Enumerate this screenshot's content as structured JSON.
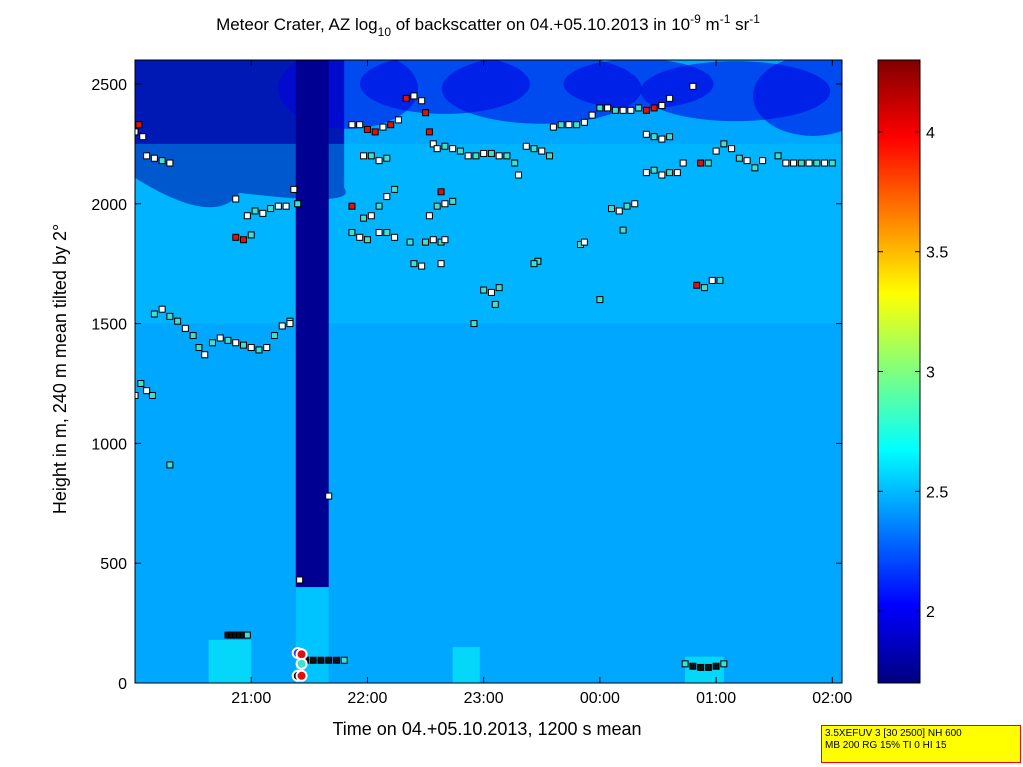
{
  "chart_data": {
    "type": "heatmap",
    "title": {
      "prefix": "Meteor Crater, AZ log",
      "log_base": "10",
      "middle": " of backscatter on 04.+05.10.2013 in 10",
      "exp1": "-9",
      "m_text": " m",
      "exp2": "-1",
      "sr_text": " sr",
      "exp3": "-1"
    },
    "xlabel": "Time on 04.+05.10.2013, 1200 s mean",
    "ylabel": "Height in m, 240 m mean tilted by 2°",
    "x_ticks": [
      "21:00",
      "22:00",
      "23:00",
      "00:00",
      "01:00",
      "02:00"
    ],
    "x_range": [
      "20:00",
      "02:05"
    ],
    "y_ticks": [
      0,
      500,
      1000,
      1500,
      2000,
      2500
    ],
    "ylim": [
      0,
      2600
    ],
    "colorbar": {
      "ticks": [
        "2",
        "2.5",
        "3",
        "3.5",
        "4"
      ],
      "ticks_num": [
        2,
        2.5,
        3,
        3.5,
        4
      ],
      "range": [
        1.7,
        4.3
      ]
    },
    "background_level": 2.45,
    "dark_column": {
      "from": "21:23",
      "to": "21:40",
      "top": 2600,
      "bottom": 400,
      "level": 1.75
    },
    "upper_dark_region": {
      "from": "20:00",
      "to": "21:48",
      "bottom": 2150,
      "level": 1.8
    },
    "layer_points": [
      [
        "20:00",
        1200,
        "w"
      ],
      [
        "20:03",
        1250,
        "c"
      ],
      [
        "20:06",
        1220,
        "w"
      ],
      [
        "20:09",
        1200,
        "c"
      ],
      [
        "20:10",
        1540,
        "c"
      ],
      [
        "20:14",
        1560,
        "w"
      ],
      [
        "20:18",
        1530,
        "c"
      ],
      [
        "20:22",
        1510,
        "c"
      ],
      [
        "20:26",
        1480,
        "w"
      ],
      [
        "20:30",
        1450,
        "c"
      ],
      [
        "20:33",
        1400,
        "c"
      ],
      [
        "20:36",
        1370,
        "w"
      ],
      [
        "20:40",
        1420,
        "c"
      ],
      [
        "20:44",
        1440,
        "w"
      ],
      [
        "20:48",
        1430,
        "c"
      ],
      [
        "20:52",
        1420,
        "w"
      ],
      [
        "20:56",
        1410,
        "c"
      ],
      [
        "21:00",
        1400,
        "w"
      ],
      [
        "21:04",
        1390,
        "c"
      ],
      [
        "21:08",
        1400,
        "w"
      ],
      [
        "21:12",
        1450,
        "c"
      ],
      [
        "21:16",
        1490,
        "w"
      ],
      [
        "21:20",
        1510,
        "c"
      ],
      [
        "20:00",
        2300,
        "w"
      ],
      [
        "20:02",
        2330,
        "r"
      ],
      [
        "20:04",
        2280,
        "w"
      ],
      [
        "20:06",
        2200,
        "w"
      ],
      [
        "20:10",
        2190,
        "w"
      ],
      [
        "20:14",
        2180,
        "c"
      ],
      [
        "20:18",
        2170,
        "w"
      ],
      [
        "20:52",
        2020,
        "w"
      ],
      [
        "20:52",
        1860,
        "r"
      ],
      [
        "20:56",
        1850,
        "r"
      ],
      [
        "21:00",
        1870,
        "c"
      ],
      [
        "20:58",
        1950,
        "w"
      ],
      [
        "21:02",
        1970,
        "c"
      ],
      [
        "21:06",
        1960,
        "w"
      ],
      [
        "21:10",
        1980,
        "c"
      ],
      [
        "21:14",
        1990,
        "w"
      ],
      [
        "21:18",
        1990,
        "w"
      ],
      [
        "21:22",
        2060,
        "w"
      ],
      [
        "21:24",
        2000,
        "c"
      ],
      [
        "21:20",
        1500,
        "w"
      ],
      [
        "20:18",
        910,
        "c"
      ],
      [
        "21:25",
        430,
        "w"
      ],
      [
        "21:40",
        780,
        "w"
      ],
      [
        "21:52",
        1990,
        "r"
      ],
      [
        "21:52",
        1880,
        "c"
      ],
      [
        "21:56",
        1860,
        "w"
      ],
      [
        "22:00",
        1850,
        "c"
      ],
      [
        "21:58",
        2200,
        "w"
      ],
      [
        "22:02",
        2200,
        "c"
      ],
      [
        "22:06",
        2180,
        "w"
      ],
      [
        "22:10",
        2190,
        "c"
      ],
      [
        "21:52",
        2330,
        "w"
      ],
      [
        "21:56",
        2330,
        "w"
      ],
      [
        "22:00",
        2310,
        "r"
      ],
      [
        "22:04",
        2300,
        "r"
      ],
      [
        "22:08",
        2320,
        "w"
      ],
      [
        "22:12",
        2330,
        "r"
      ],
      [
        "22:16",
        2350,
        "w"
      ],
      [
        "22:20",
        2440,
        "r"
      ],
      [
        "22:24",
        2450,
        "w"
      ],
      [
        "22:28",
        2430,
        "w"
      ],
      [
        "22:30",
        2380,
        "r"
      ],
      [
        "22:32",
        2300,
        "r"
      ],
      [
        "22:34",
        2250,
        "w"
      ],
      [
        "21:58",
        1940,
        "c"
      ],
      [
        "22:02",
        1950,
        "w"
      ],
      [
        "22:06",
        1990,
        "c"
      ],
      [
        "22:10",
        2030,
        "w"
      ],
      [
        "22:14",
        2060,
        "c"
      ],
      [
        "22:06",
        1880,
        "w"
      ],
      [
        "22:10",
        1880,
        "c"
      ],
      [
        "22:14",
        1860,
        "w"
      ],
      [
        "22:22",
        1840,
        "c"
      ],
      [
        "22:24",
        1750,
        "c"
      ],
      [
        "22:28",
        1740,
        "w"
      ],
      [
        "22:30",
        1840,
        "c"
      ],
      [
        "22:34",
        1850,
        "w"
      ],
      [
        "22:38",
        1840,
        "c"
      ],
      [
        "22:40",
        1850,
        "w"
      ],
      [
        "22:32",
        1950,
        "w"
      ],
      [
        "22:36",
        1990,
        "c"
      ],
      [
        "22:40",
        2000,
        "w"
      ],
      [
        "22:44",
        2010,
        "c"
      ],
      [
        "22:38",
        2050,
        "r"
      ],
      [
        "22:38",
        1750,
        "w"
      ],
      [
        "22:36",
        2230,
        "w"
      ],
      [
        "22:40",
        2240,
        "c"
      ],
      [
        "22:44",
        2230,
        "w"
      ],
      [
        "22:48",
        2220,
        "c"
      ],
      [
        "22:52",
        2200,
        "w"
      ],
      [
        "22:56",
        2200,
        "c"
      ],
      [
        "23:00",
        2210,
        "w"
      ],
      [
        "23:04",
        2210,
        "c"
      ],
      [
        "23:08",
        2200,
        "w"
      ],
      [
        "23:12",
        2200,
        "c"
      ],
      [
        "23:16",
        2170,
        "c"
      ],
      [
        "23:18",
        2120,
        "w"
      ],
      [
        "23:22",
        2240,
        "w"
      ],
      [
        "23:26",
        2230,
        "c"
      ],
      [
        "23:30",
        2220,
        "w"
      ],
      [
        "23:34",
        2200,
        "c"
      ],
      [
        "23:00",
        1640,
        "c"
      ],
      [
        "23:04",
        1630,
        "w"
      ],
      [
        "23:08",
        1650,
        "c"
      ],
      [
        "23:06",
        1580,
        "c"
      ],
      [
        "22:55",
        1500,
        "c"
      ],
      [
        "23:28",
        1760,
        "c"
      ],
      [
        "23:26",
        1750,
        "c"
      ],
      [
        "23:36",
        2320,
        "w"
      ],
      [
        "23:40",
        2330,
        "c"
      ],
      [
        "23:44",
        2330,
        "w"
      ],
      [
        "23:48",
        2330,
        "c"
      ],
      [
        "23:52",
        2340,
        "w"
      ],
      [
        "23:56",
        2370,
        "w"
      ],
      [
        "00:00",
        2400,
        "c"
      ],
      [
        "00:04",
        2400,
        "w"
      ],
      [
        "00:08",
        2390,
        "c"
      ],
      [
        "00:12",
        2390,
        "w"
      ],
      [
        "00:16",
        2390,
        "w"
      ],
      [
        "00:20",
        2400,
        "c"
      ],
      [
        "00:24",
        2390,
        "r"
      ],
      [
        "00:28",
        2400,
        "r"
      ],
      [
        "00:32",
        2410,
        "w"
      ],
      [
        "00:36",
        2440,
        "w"
      ],
      [
        "23:50",
        1830,
        "c"
      ],
      [
        "23:52",
        1840,
        "w"
      ],
      [
        "00:00",
        1600,
        "c"
      ],
      [
        "00:06",
        1980,
        "c"
      ],
      [
        "00:10",
        1970,
        "w"
      ],
      [
        "00:14",
        1990,
        "c"
      ],
      [
        "00:12",
        1890,
        "c"
      ],
      [
        "00:18",
        2000,
        "w"
      ],
      [
        "00:24",
        2130,
        "w"
      ],
      [
        "00:28",
        2140,
        "c"
      ],
      [
        "00:32",
        2120,
        "w"
      ],
      [
        "00:36",
        2130,
        "c"
      ],
      [
        "00:40",
        2130,
        "w"
      ],
      [
        "00:24",
        2290,
        "w"
      ],
      [
        "00:28",
        2280,
        "c"
      ],
      [
        "00:32",
        2270,
        "w"
      ],
      [
        "00:36",
        2280,
        "c"
      ],
      [
        "00:43",
        2170,
        "w"
      ],
      [
        "00:48",
        2490,
        "w"
      ],
      [
        "00:50",
        1660,
        "r"
      ],
      [
        "00:54",
        1650,
        "c"
      ],
      [
        "00:58",
        1680,
        "w"
      ],
      [
        "01:02",
        1680,
        "c"
      ],
      [
        "00:52",
        2170,
        "w"
      ],
      [
        "00:52",
        2170,
        "r"
      ],
      [
        "00:56",
        2170,
        "c"
      ],
      [
        "01:00",
        2220,
        "w"
      ],
      [
        "01:04",
        2250,
        "c"
      ],
      [
        "01:08",
        2230,
        "w"
      ],
      [
        "01:12",
        2190,
        "c"
      ],
      [
        "01:16",
        2180,
        "w"
      ],
      [
        "01:20",
        2150,
        "c"
      ],
      [
        "01:24",
        2180,
        "w"
      ],
      [
        "01:32",
        2200,
        "c"
      ],
      [
        "01:36",
        2170,
        "w"
      ],
      [
        "01:40",
        2170,
        "w"
      ],
      [
        "01:44",
        2170,
        "c"
      ],
      [
        "01:48",
        2170,
        "w"
      ],
      [
        "01:52",
        2170,
        "c"
      ],
      [
        "01:56",
        2170,
        "w"
      ],
      [
        "02:00",
        2170,
        "c"
      ]
    ],
    "surface_points": [
      [
        "20:48",
        200,
        "k"
      ],
      [
        "20:50",
        200,
        "k"
      ],
      [
        "20:52",
        200,
        "k"
      ],
      [
        "20:54",
        200,
        "k"
      ],
      [
        "20:56",
        200,
        "k"
      ],
      [
        "20:58",
        200,
        "c"
      ],
      [
        "21:28",
        95,
        "k"
      ],
      [
        "21:32",
        95,
        "k"
      ],
      [
        "21:36",
        95,
        "k"
      ],
      [
        "21:40",
        95,
        "k"
      ],
      [
        "21:44",
        95,
        "k"
      ],
      [
        "21:48",
        95,
        "c"
      ],
      [
        "00:44",
        80,
        "c"
      ],
      [
        "00:48",
        70,
        "k"
      ],
      [
        "00:52",
        65,
        "k"
      ],
      [
        "00:56",
        65,
        "k"
      ],
      [
        "01:00",
        70,
        "k"
      ],
      [
        "01:04",
        80,
        "c"
      ]
    ],
    "ringed_points": [
      [
        "21:24",
        125,
        "b"
      ],
      [
        "21:26",
        120,
        "r"
      ],
      [
        "21:24",
        30,
        "k"
      ],
      [
        "21:26",
        80,
        "c"
      ],
      [
        "21:26",
        30,
        "r"
      ]
    ]
  },
  "info_box": {
    "line1": "3.5XEFUV 3 [30 2500] NH 600",
    "line2": "MB 200 RG 15% TI 0 HI 15"
  },
  "colors": {
    "point_white": "#ffffff",
    "point_cyan": "#40e0d0",
    "point_red": "#dd1111",
    "point_black": "#111111",
    "point_blue": "#3030ff",
    "ring_magenta": "#b000b0"
  }
}
